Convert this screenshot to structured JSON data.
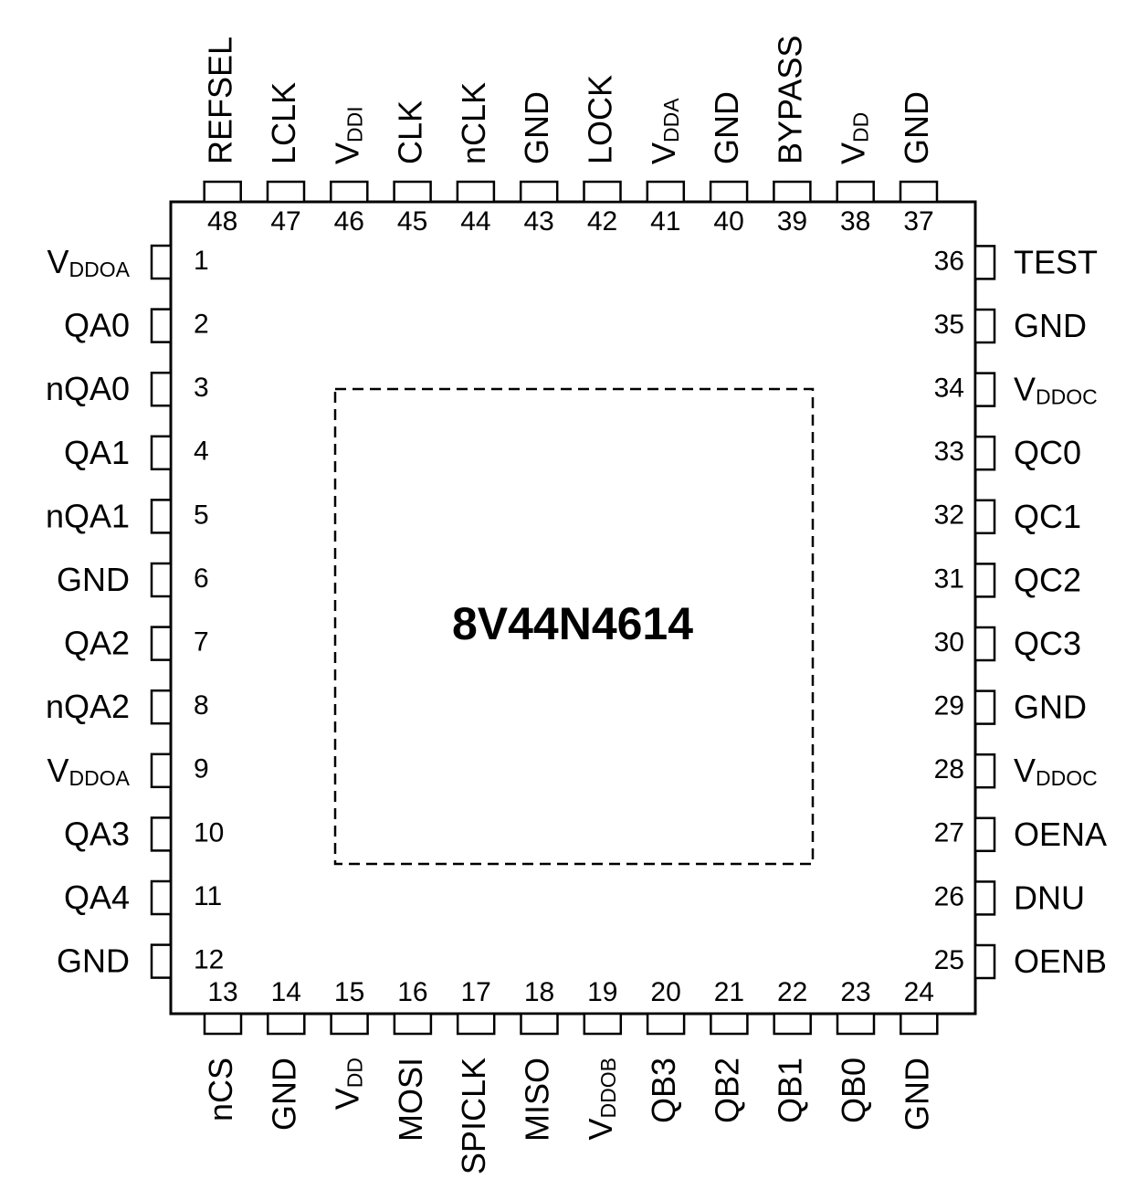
{
  "chip_name": "8V44N4614",
  "pins": {
    "left": [
      {
        "num": "1",
        "name": "V",
        "sub": "DDOA"
      },
      {
        "num": "2",
        "name": "QA0"
      },
      {
        "num": "3",
        "name": "nQA0"
      },
      {
        "num": "4",
        "name": "QA1"
      },
      {
        "num": "5",
        "name": "nQA1"
      },
      {
        "num": "6",
        "name": "GND"
      },
      {
        "num": "7",
        "name": "QA2"
      },
      {
        "num": "8",
        "name": "nQA2"
      },
      {
        "num": "9",
        "name": "V",
        "sub": "DDOA"
      },
      {
        "num": "10",
        "name": "QA3"
      },
      {
        "num": "11",
        "name": "QA4"
      },
      {
        "num": "12",
        "name": "GND"
      }
    ],
    "bottom": [
      {
        "num": "13",
        "name": "nCS"
      },
      {
        "num": "14",
        "name": "GND"
      },
      {
        "num": "15",
        "name": "V",
        "sub": "DD"
      },
      {
        "num": "16",
        "name": "MOSI"
      },
      {
        "num": "17",
        "name": "SPICLK"
      },
      {
        "num": "18",
        "name": "MISO"
      },
      {
        "num": "19",
        "name": "V",
        "sub": "DDOB"
      },
      {
        "num": "20",
        "name": "QB3"
      },
      {
        "num": "21",
        "name": "QB2"
      },
      {
        "num": "22",
        "name": "QB1"
      },
      {
        "num": "23",
        "name": "QB0"
      },
      {
        "num": "24",
        "name": "GND"
      }
    ],
    "right": [
      {
        "num": "25",
        "name": "OENB"
      },
      {
        "num": "26",
        "name": "DNU"
      },
      {
        "num": "27",
        "name": "OENA"
      },
      {
        "num": "28",
        "name": "V",
        "sub": "DDOC"
      },
      {
        "num": "29",
        "name": "GND"
      },
      {
        "num": "30",
        "name": "QC3"
      },
      {
        "num": "31",
        "name": "QC2"
      },
      {
        "num": "32",
        "name": "QC1"
      },
      {
        "num": "33",
        "name": "QC0"
      },
      {
        "num": "34",
        "name": "V",
        "sub": "DDOC"
      },
      {
        "num": "35",
        "name": "GND"
      },
      {
        "num": "36",
        "name": "TEST"
      }
    ],
    "top": [
      {
        "num": "37",
        "name": "GND"
      },
      {
        "num": "38",
        "name": "V",
        "sub": "DD"
      },
      {
        "num": "39",
        "name": "BYPASS"
      },
      {
        "num": "40",
        "name": "GND"
      },
      {
        "num": "41",
        "name": "V",
        "sub": "DDA"
      },
      {
        "num": "42",
        "name": "LOCK"
      },
      {
        "num": "43",
        "name": "GND"
      },
      {
        "num": "44",
        "name": "nCLK"
      },
      {
        "num": "45",
        "name": "CLK"
      },
      {
        "num": "46",
        "name": "V",
        "sub": "DDI"
      },
      {
        "num": "47",
        "name": "LCLK"
      },
      {
        "num": "48",
        "name": "REFSEL"
      }
    ]
  }
}
